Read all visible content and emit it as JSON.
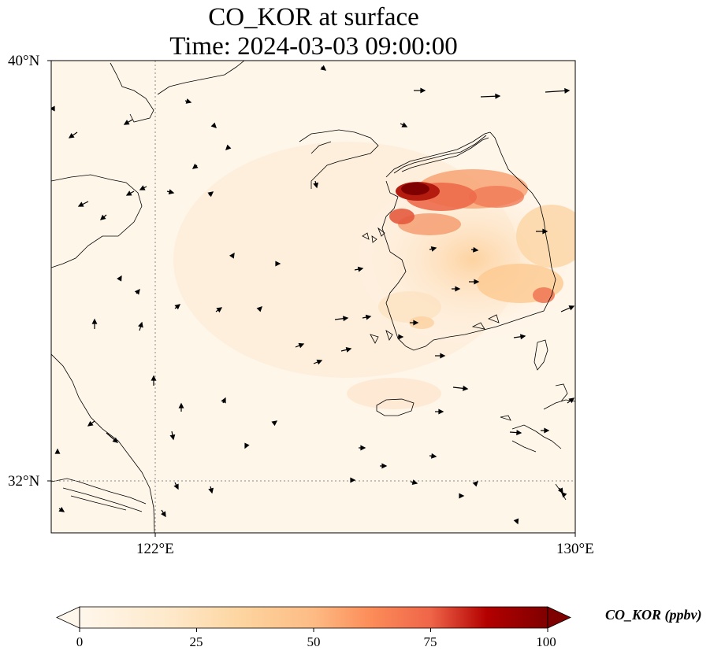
{
  "title": {
    "line1": "CO_KOR at surface",
    "line2": "Time: 2024-03-03 09:00:00"
  },
  "map": {
    "lat_ticks": [
      "40°N",
      "32°N"
    ],
    "lon_ticks": [
      "122°E",
      "130°E"
    ],
    "gridlines": "dotted at 122°E and 32°N"
  },
  "colorbar": {
    "label": "CO_KOR (ppbv)",
    "ticks": [
      "0",
      "25",
      "50",
      "75",
      "100"
    ],
    "extend": "both",
    "colormap": "OrRd",
    "colors": {
      "low": "#fff7ec",
      "mid": "#fdbb84",
      "high": "#d7301f",
      "max": "#7f0000"
    }
  }
}
